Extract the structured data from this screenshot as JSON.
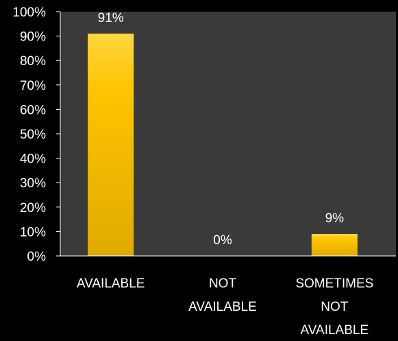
{
  "chart_data": {
    "type": "bar",
    "categories": [
      [
        "AVAILABLE"
      ],
      [
        "NOT",
        "AVAILABLE"
      ],
      [
        "SOMETIMES",
        "NOT",
        "AVAILABLE"
      ]
    ],
    "values": [
      91,
      0,
      9
    ],
    "data_labels": [
      "91%",
      "0%",
      "9%"
    ],
    "ylim": [
      0,
      100
    ],
    "yticks": [
      "0%",
      "10%",
      "20%",
      "30%",
      "40%",
      "50%",
      "60%",
      "70%",
      "80%",
      "90%",
      "100%"
    ],
    "grid": false,
    "legend": "none"
  },
  "colors": {
    "background": "#000000",
    "plot_area": "#3a3a3a",
    "bar_top": "#ffd640",
    "bar_mid": "#ffc400",
    "bar_bottom": "#e0ab00",
    "text": "#ffffff"
  }
}
